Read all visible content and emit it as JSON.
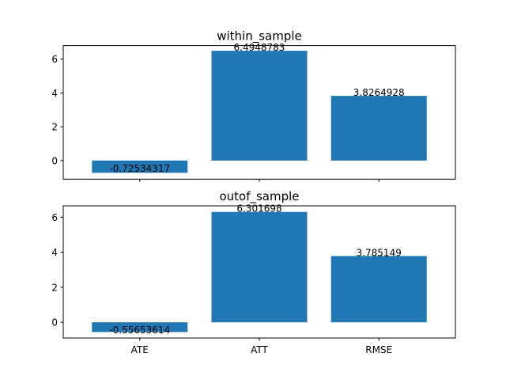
{
  "chart_data": [
    {
      "type": "bar",
      "title": "within_sample",
      "categories": [
        "ATE",
        "ATT",
        "RMSE"
      ],
      "values": [
        -0.72534317,
        6.4948783,
        3.8264928
      ],
      "value_labels": [
        "-0.72534317",
        "6.4948783",
        "3.8264928"
      ],
      "yticks": [
        0,
        2,
        4,
        6
      ],
      "ylim": [
        -1.1,
        6.8
      ],
      "show_xtick_labels": false,
      "bar_color": "#1f77b4",
      "grid": false
    },
    {
      "type": "bar",
      "title": "outof_sample",
      "categories": [
        "ATE",
        "ATT",
        "RMSE"
      ],
      "values": [
        -0.55653614,
        6.301698,
        3.785149
      ],
      "value_labels": [
        "-0.55653614",
        "6.301698",
        "3.785149"
      ],
      "yticks": [
        0,
        2,
        4,
        6
      ],
      "ylim": [
        -0.9,
        6.65
      ],
      "show_xtick_labels": true,
      "bar_color": "#1f77b4",
      "grid": false
    }
  ]
}
